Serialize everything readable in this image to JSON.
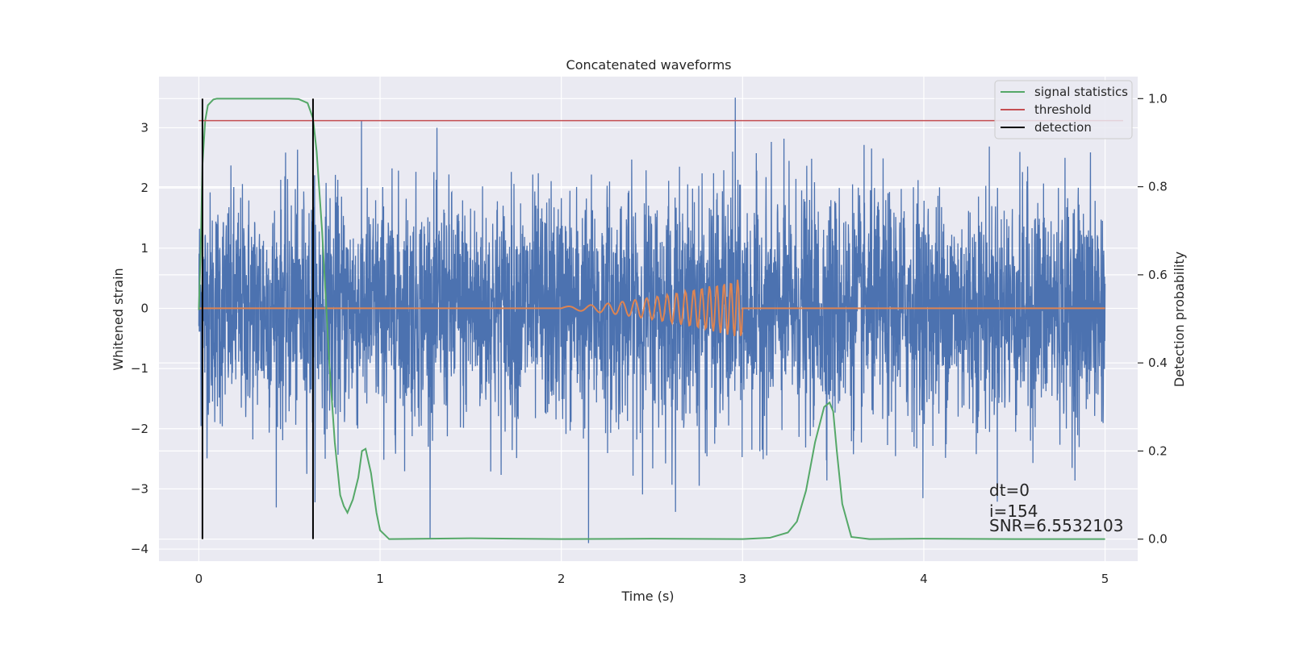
{
  "chart_data": {
    "type": "line",
    "title": "Concatenated waveforms",
    "xlabel": "Time (s)",
    "ylabel": "Whitened strain",
    "y2label": "Detection probability",
    "xlim": [
      -0.22,
      5.18
    ],
    "ylim": [
      -4.2,
      3.85
    ],
    "y2lim": [
      -0.05,
      1.05
    ],
    "x_ticks": [
      0,
      1,
      2,
      3,
      4,
      5
    ],
    "y_ticks": [
      3,
      2,
      1,
      0,
      -1,
      -2,
      -3,
      -4
    ],
    "y2_ticks": [
      "1.0",
      "0.8",
      "0.6",
      "0.4",
      "0.2",
      "0.0"
    ],
    "grid": true,
    "legend_position": "top-right",
    "legend": [
      "signal statistics",
      "threshold",
      "detection"
    ],
    "colors": {
      "background": "#eaeaf2",
      "grid": "#ffffff",
      "strain": "#4c72b0",
      "waveform": "#dd8452",
      "signal_statistics": "#55a868",
      "threshold": "#c44e52",
      "detection": "#000000"
    },
    "noise": {
      "x_range": [
        0,
        5
      ],
      "samples": 4096,
      "sigma": 0.95,
      "peak_max": 3.5,
      "peak_min": -3.9,
      "peak_max_x": 2.96,
      "peak_min_x": 2.15
    },
    "waveform": {
      "x": [
        0,
        2.0,
        2.2,
        2.4,
        2.6,
        2.8,
        2.9,
        2.96,
        3.0,
        5.0
      ],
      "y": [
        0,
        0,
        0.05,
        0.12,
        0.2,
        0.33,
        0.42,
        0.48,
        0,
        0
      ],
      "chirp_start": 2.0,
      "chirp_end": 3.0,
      "amp_start": 0.03,
      "amp_end": 0.5,
      "cycles": 17
    },
    "signal_statistics": {
      "x": [
        0.0,
        0.01,
        0.02,
        0.035,
        0.05,
        0.08,
        0.1,
        0.3,
        0.5,
        0.55,
        0.6,
        0.63,
        0.65,
        0.68,
        0.7,
        0.72,
        0.75,
        0.78,
        0.8,
        0.82,
        0.85,
        0.88,
        0.9,
        0.92,
        0.95,
        0.98,
        1.0,
        1.05,
        1.5,
        2.0,
        2.5,
        3.0,
        3.15,
        3.25,
        3.3,
        3.35,
        3.4,
        3.45,
        3.48,
        3.5,
        3.52,
        3.55,
        3.6,
        3.7,
        4.0,
        4.5,
        5.0
      ],
      "y": [
        0.52,
        0.65,
        0.85,
        0.95,
        0.985,
        0.998,
        1.0,
        1.0,
        1.0,
        0.999,
        0.99,
        0.955,
        0.88,
        0.7,
        0.55,
        0.4,
        0.22,
        0.1,
        0.075,
        0.06,
        0.09,
        0.14,
        0.2,
        0.205,
        0.15,
        0.06,
        0.02,
        0.0,
        0.002,
        0.0,
        0.001,
        0.0,
        0.003,
        0.015,
        0.04,
        0.11,
        0.22,
        0.3,
        0.31,
        0.29,
        0.2,
        0.08,
        0.005,
        0.0,
        0.001,
        0.0,
        0.0
      ]
    },
    "threshold": {
      "value": 0.95,
      "x_range": [
        0,
        5.1
      ]
    },
    "detections": [
      0.02,
      0.63
    ],
    "annotations": [
      "dt=0",
      "i=154",
      "SNR=6.5532103"
    ]
  }
}
